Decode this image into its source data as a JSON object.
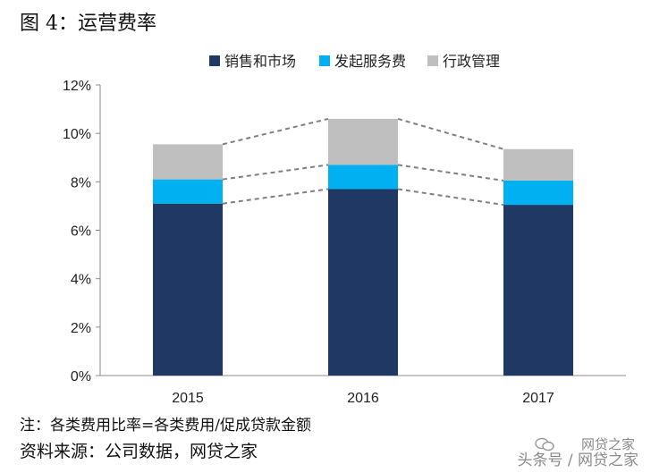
{
  "header": {
    "title": "图 4：运营费率"
  },
  "footer": {
    "note": "注：各类费用比率=各类费用/促成贷款金额",
    "source": "资料来源：公司数据，网贷之家",
    "watermark_brand": "网贷之家",
    "watermark_text": "头条号 / 网贷之家"
  },
  "colors": {
    "marketing": "#1f3864",
    "servicing": "#00b0f0",
    "admin": "#bfbfbf",
    "connector": "#7f7f7f"
  },
  "chart_data": {
    "type": "bar",
    "stacked": true,
    "categories": [
      "2015",
      "2016",
      "2017"
    ],
    "series": [
      {
        "name": "销售和市场",
        "values": [
          7.1,
          7.7,
          7.05
        ]
      },
      {
        "name": "发起服务费",
        "values": [
          1.0,
          1.0,
          1.0
        ]
      },
      {
        "name": "行政管理",
        "values": [
          1.45,
          1.9,
          1.3
        ]
      }
    ],
    "ylim": [
      0,
      12
    ],
    "yticks": [
      "0%",
      "2%",
      "4%",
      "6%",
      "8%",
      "10%",
      "12%"
    ],
    "xlabel": "",
    "ylabel": "",
    "grid": false,
    "legend": "top",
    "connector_lines": "dashed"
  }
}
